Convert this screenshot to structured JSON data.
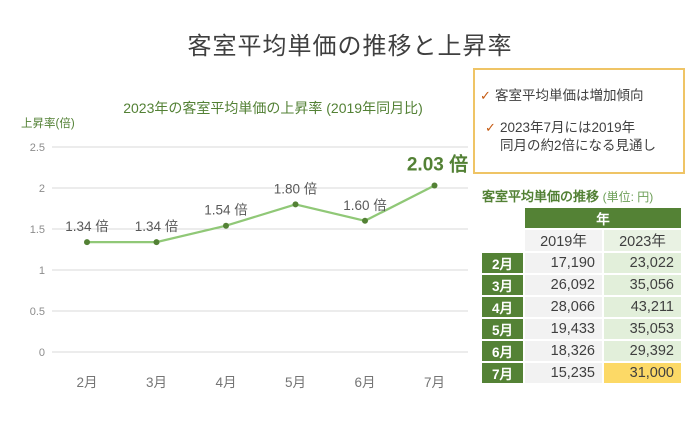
{
  "page": {
    "title": "客室平均単価の推移と上昇率"
  },
  "chart_data": [
    {
      "type": "line",
      "title": "2023年の客室平均単価の上昇率 (2019年同月比)",
      "ylabel": "上昇率(倍)",
      "xlabel": "",
      "categories": [
        "2月",
        "3月",
        "4月",
        "5月",
        "6月",
        "7月"
      ],
      "values": [
        1.34,
        1.34,
        1.54,
        1.8,
        1.6,
        2.03
      ],
      "point_labels": [
        "1.34 倍",
        "1.34 倍",
        "1.54 倍",
        "1.80 倍",
        "1.60 倍",
        "2.03 倍"
      ],
      "ylim": [
        0,
        2.5
      ],
      "yticks": [
        "2.5",
        "2",
        "1.5",
        "1",
        "0.5",
        "0"
      ],
      "grid": true,
      "legend": false
    },
    {
      "type": "table",
      "title": "客室平均単価の推移",
      "unit_label": "(単位: 円)",
      "column_group": "年",
      "columns": [
        "2019年",
        "2023年"
      ],
      "rows": [
        [
          "2月",
          "17,190",
          "23,022"
        ],
        [
          "3月",
          "26,092",
          "35,056"
        ],
        [
          "4月",
          "28,066",
          "43,211"
        ],
        [
          "5月",
          "19,433",
          "35,053"
        ],
        [
          "6月",
          "18,326",
          "29,392"
        ],
        [
          "7月",
          "15,235",
          "31,000"
        ]
      ],
      "highlight_cell": {
        "row": "7月",
        "column": "2023年",
        "value": "31,000"
      }
    }
  ],
  "callout": {
    "check_glyph": "✓",
    "items": [
      {
        "text": "客室平均単価は増加傾向"
      },
      {
        "line1": "2023年7月には2019年",
        "line2": "同月の約2倍になる見通し"
      }
    ]
  },
  "colors": {
    "accent_green_dark": "#538135",
    "line_green": "#90c877",
    "grid": "#d9d9d9",
    "tick_text": "#8c8c8c",
    "axis_text": "#757575",
    "data_label": "#595959",
    "table_header_bg": "#548235",
    "col_2019_bg": "#f2f2f2",
    "col_2023_bg": "#e2efda",
    "highlight_bg": "#fcd966",
    "callout_border": "#efc465",
    "check_mark": "#c55a11",
    "title_text": "#3f3f3f"
  }
}
